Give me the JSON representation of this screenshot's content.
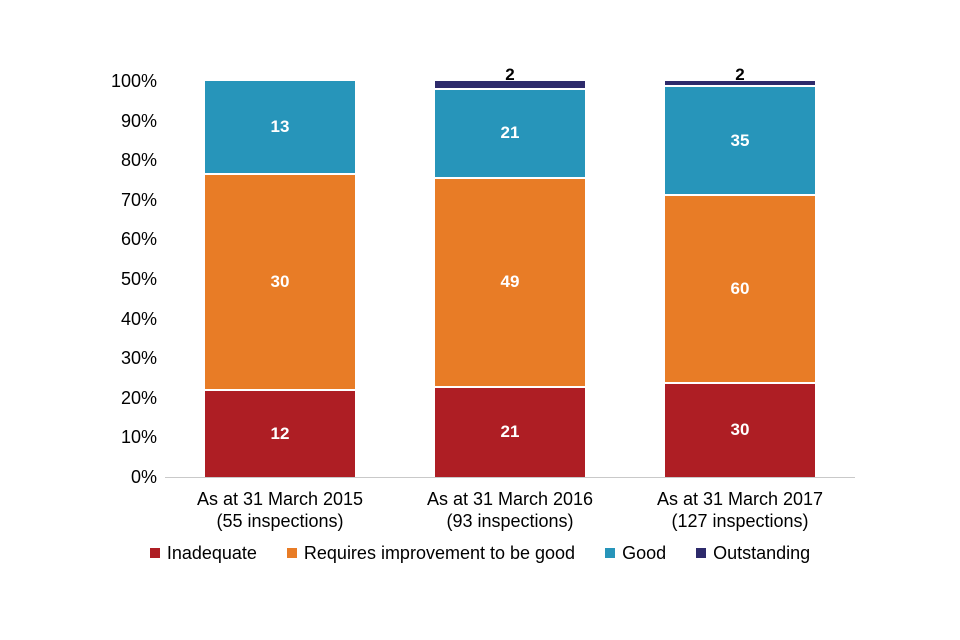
{
  "chart_data": {
    "type": "bar",
    "stacked": true,
    "percent_scale": true,
    "title": "",
    "xlabel": "",
    "ylabel": "",
    "ylim": [
      0,
      100
    ],
    "yticks": [
      "0%",
      "10%",
      "20%",
      "30%",
      "40%",
      "50%",
      "60%",
      "70%",
      "80%",
      "90%",
      "100%"
    ],
    "grid": false,
    "legend_position": "bottom",
    "categories": [
      {
        "label": "As at 31 March 2015",
        "sublabel": "(55 inspections)",
        "total": 55
      },
      {
        "label": "As at 31 March 2016",
        "sublabel": "(93 inspections)",
        "total": 93
      },
      {
        "label": "As at 31 March 2017",
        "sublabel": "(127 inspections)",
        "total": 127
      }
    ],
    "series": [
      {
        "name": "Inadequate",
        "color": "#AE1E24",
        "values": [
          12,
          21,
          30
        ]
      },
      {
        "name": "Requires improvement to be good",
        "color": "#E87C26",
        "values": [
          30,
          49,
          60
        ]
      },
      {
        "name": "Good",
        "color": "#2795BA",
        "values": [
          13,
          21,
          35
        ]
      },
      {
        "name": "Outstanding",
        "color": "#2D2A6B",
        "values": [
          0,
          2,
          2
        ]
      }
    ],
    "label_colors": {
      "inside": "#FFFFFF",
      "outside": "#000000"
    },
    "axis_line_color": "#C9C9C9"
  }
}
